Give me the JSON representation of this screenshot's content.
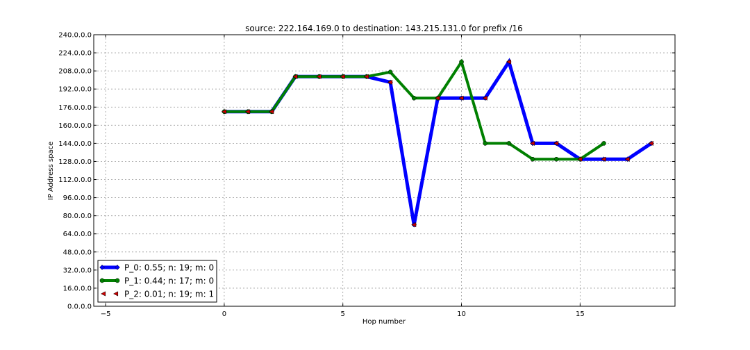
{
  "chart_data": {
    "type": "line",
    "title": "source: 222.164.169.0 to destination: 143.215.131.0 for prefix /16",
    "xlabel": "Hop number",
    "ylabel": "IP Address space",
    "xlim": [
      -5.5,
      19
    ],
    "ylim": [
      0,
      240
    ],
    "x_ticks": [
      -5,
      0,
      5,
      10,
      15
    ],
    "x_tick_labels": [
      "−5",
      "0",
      "5",
      "10",
      "15"
    ],
    "y_ticks": [
      0,
      16,
      32,
      48,
      64,
      80,
      96,
      112,
      128,
      144,
      160,
      176,
      192,
      208,
      224,
      240
    ],
    "y_tick_labels": [
      "0.0.0.0",
      "16.0.0.0",
      "32.0.0.0",
      "48.0.0.0",
      "64.0.0.0",
      "80.0.0.0",
      "96.0.0.0",
      "112.0.0.0",
      "128.0.0.0",
      "144.0.0.0",
      "160.0.0.0",
      "176.0.0.0",
      "192.0.0.0",
      "208.0.0.0",
      "224.0.0.0",
      "240.0.0.0"
    ],
    "grid": true,
    "legend_position": "lower-left",
    "series": [
      {
        "name": "P_0: 0.55; n: 19; m: 0",
        "color": "#0000ff",
        "style": "thick-line-diamond",
        "x": [
          0,
          1,
          2,
          3,
          4,
          5,
          6,
          7,
          8,
          9,
          10,
          11,
          12,
          13,
          14,
          15,
          16,
          17,
          18
        ],
        "y": [
          172,
          172,
          172,
          203,
          203,
          203,
          203,
          198,
          72,
          184,
          184,
          184,
          216,
          144,
          144,
          130,
          130,
          130,
          144
        ]
      },
      {
        "name": "P_1: 0.44; n: 17; m: 0",
        "color": "#008000",
        "style": "thick-line-octagon",
        "x": [
          0,
          1,
          2,
          3,
          4,
          5,
          6,
          7,
          8,
          9,
          10,
          11,
          12,
          13,
          14,
          15,
          16
        ],
        "y": [
          172,
          172,
          172,
          203,
          203,
          203,
          203,
          207,
          184,
          184,
          216,
          144,
          144,
          130,
          130,
          130,
          144
        ]
      },
      {
        "name": "P_2: 0.01; n: 19; m: 1",
        "color": "#cc0000",
        "style": "markers-only",
        "x": [
          0,
          1,
          2,
          3,
          4,
          5,
          6,
          7,
          8,
          9,
          10,
          11,
          12,
          13,
          14,
          15,
          16,
          17,
          18
        ],
        "y": [
          172,
          172,
          172,
          203,
          203,
          203,
          203,
          198,
          72,
          184,
          184,
          184,
          216,
          144,
          144,
          130,
          130,
          130,
          144
        ]
      }
    ]
  }
}
